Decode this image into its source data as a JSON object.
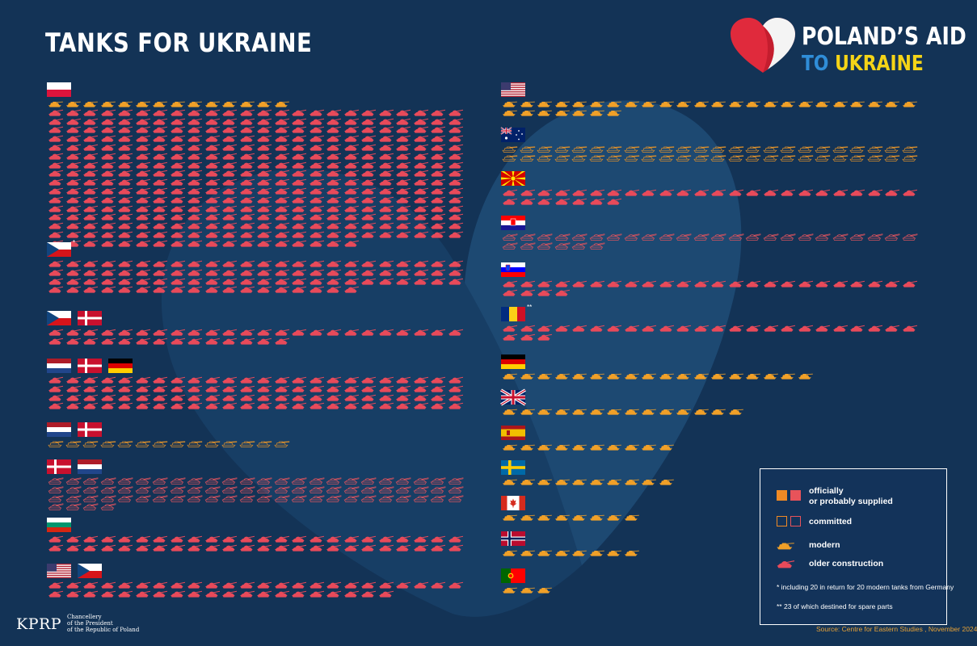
{
  "title": "TANKS FOR UKRAINE",
  "brand": {
    "line1": "POLAND’S AID",
    "line2a": "TO ",
    "line2b": "UKRAINE"
  },
  "colors": {
    "background": "#133356",
    "heart": "#1a4470",
    "older": "#e84a5a",
    "modern": "#f0a028",
    "committed_modern": "#d98e2c",
    "committed_older": "#d5525e"
  },
  "left_groups": [
    {
      "flags": [
        "poland"
      ],
      "note": "",
      "rows": [
        {
          "kind": "modern",
          "status": "supplied",
          "count": 14
        },
        {
          "kind": "older",
          "status": "supplied",
          "count": 24
        },
        {
          "kind": "older",
          "status": "supplied",
          "count": 24
        },
        {
          "kind": "older",
          "status": "supplied",
          "count": 24
        },
        {
          "kind": "older",
          "status": "supplied",
          "count": 24
        },
        {
          "kind": "older",
          "status": "supplied",
          "count": 24
        },
        {
          "kind": "older",
          "status": "supplied",
          "count": 24
        },
        {
          "kind": "older",
          "status": "supplied",
          "count": 24
        },
        {
          "kind": "older",
          "status": "supplied",
          "count": 24
        },
        {
          "kind": "older",
          "status": "supplied",
          "count": 24
        },
        {
          "kind": "older",
          "status": "supplied",
          "count": 24
        },
        {
          "kind": "older",
          "status": "supplied",
          "count": 24
        },
        {
          "kind": "older",
          "status": "supplied",
          "count": 24
        },
        {
          "kind": "older",
          "status": "supplied",
          "count": 24
        },
        {
          "kind": "older",
          "status": "supplied",
          "count": 24
        },
        {
          "kind": "older",
          "status": "supplied",
          "count": 24
        },
        {
          "kind": "older",
          "status": "supplied",
          "count": 18
        }
      ]
    },
    {
      "flags": [
        "czech"
      ],
      "note": "*",
      "rows": [
        {
          "kind": "older",
          "status": "supplied",
          "count": 24
        },
        {
          "kind": "older",
          "status": "supplied",
          "count": 24
        },
        {
          "kind": "older",
          "status": "supplied",
          "count": 24
        },
        {
          "kind": "older",
          "status": "supplied",
          "count": 18
        }
      ]
    },
    {
      "flags": [
        "czech",
        "denmark"
      ],
      "note": "",
      "rows": [
        {
          "kind": "older",
          "status": "supplied",
          "count": 24
        },
        {
          "kind": "older",
          "status": "supplied",
          "count": 14
        }
      ]
    },
    {
      "flags": [
        "netherlands",
        "denmark",
        "germany"
      ],
      "note": "",
      "rows": [
        {
          "kind": "older",
          "status": "supplied",
          "count": 24
        },
        {
          "kind": "older",
          "status": "supplied",
          "count": 24
        },
        {
          "kind": "older",
          "status": "supplied",
          "count": 24
        },
        {
          "kind": "older",
          "status": "supplied",
          "count": 24
        }
      ]
    },
    {
      "flags": [
        "netherlands",
        "denmark"
      ],
      "note": "",
      "rows": [
        {
          "kind": "modern",
          "status": "committed",
          "count": 14
        }
      ]
    },
    {
      "flags": [
        "denmark",
        "netherlands"
      ],
      "note": "",
      "rows": [
        {
          "kind": "older",
          "status": "committed",
          "count": 24
        },
        {
          "kind": "older",
          "status": "committed",
          "count": 24
        },
        {
          "kind": "older",
          "status": "committed",
          "count": 24
        },
        {
          "kind": "older",
          "status": "committed",
          "count": 4
        }
      ]
    },
    {
      "flags": [
        "bulgaria"
      ],
      "note": "",
      "rows": [
        {
          "kind": "older",
          "status": "supplied",
          "count": 24
        },
        {
          "kind": "older",
          "status": "supplied",
          "count": 24
        }
      ]
    },
    {
      "flags": [
        "usa",
        "czech"
      ],
      "note": "",
      "rows": [
        {
          "kind": "older",
          "status": "supplied",
          "count": 24
        },
        {
          "kind": "older",
          "status": "supplied",
          "count": 20
        }
      ]
    }
  ],
  "right_groups": [
    {
      "flags": [
        "usa"
      ],
      "note": "",
      "rows": [
        {
          "kind": "modern",
          "status": "supplied",
          "count": 24
        },
        {
          "kind": "modern",
          "status": "supplied",
          "count": 7
        }
      ]
    },
    {
      "flags": [
        "australia"
      ],
      "note": "",
      "rows": [
        {
          "kind": "modern",
          "status": "committed",
          "count": 24
        },
        {
          "kind": "modern",
          "status": "committed",
          "count": 24
        }
      ]
    },
    {
      "flags": [
        "north_macedonia"
      ],
      "note": "",
      "rows": [
        {
          "kind": "older",
          "status": "supplied",
          "count": 24
        },
        {
          "kind": "older",
          "status": "supplied",
          "count": 7
        }
      ]
    },
    {
      "flags": [
        "croatia"
      ],
      "note": "",
      "rows": [
        {
          "kind": "older",
          "status": "committed",
          "count": 24
        },
        {
          "kind": "older",
          "status": "committed",
          "count": 6
        }
      ]
    },
    {
      "flags": [
        "slovenia"
      ],
      "note": "",
      "rows": [
        {
          "kind": "older",
          "status": "supplied",
          "count": 24
        },
        {
          "kind": "older",
          "status": "supplied",
          "count": 4
        }
      ]
    },
    {
      "flags": [
        "romania"
      ],
      "note": "**",
      "rows": [
        {
          "kind": "older",
          "status": "supplied",
          "count": 24
        },
        {
          "kind": "older",
          "status": "supplied",
          "count": 3
        }
      ]
    },
    {
      "flags": [
        "germany"
      ],
      "note": "",
      "rows": [
        {
          "kind": "modern",
          "status": "supplied",
          "count": 18
        }
      ]
    },
    {
      "flags": [
        "uk"
      ],
      "note": "",
      "rows": [
        {
          "kind": "modern",
          "status": "supplied",
          "count": 14
        }
      ]
    },
    {
      "flags": [
        "spain"
      ],
      "note": "",
      "rows": [
        {
          "kind": "modern",
          "status": "supplied",
          "count": 10
        }
      ]
    },
    {
      "flags": [
        "sweden"
      ],
      "note": "",
      "rows": [
        {
          "kind": "modern",
          "status": "supplied",
          "count": 10
        }
      ]
    },
    {
      "flags": [
        "canada"
      ],
      "note": "",
      "rows": [
        {
          "kind": "modern",
          "status": "supplied",
          "count": 8
        }
      ]
    },
    {
      "flags": [
        "norway"
      ],
      "note": "",
      "rows": [
        {
          "kind": "modern",
          "status": "supplied",
          "count": 8
        }
      ]
    },
    {
      "flags": [
        "portugal"
      ],
      "note": "",
      "rows": [
        {
          "kind": "modern",
          "status": "supplied",
          "count": 3
        }
      ]
    }
  ],
  "legend": {
    "supplied_line1": "officially",
    "supplied_line2": "or probably supplied",
    "committed": "committed",
    "modern": "modern",
    "older": "older construction",
    "footnote1": "*   including 20 in return for 20 modern tanks from Germany",
    "footnote2": "** 23 of which destined for spare parts"
  },
  "source": "Source: Centre for Eastern Studies , November 2024",
  "kprp": {
    "logo": "KPRP",
    "line1": "Chancellery",
    "line2": "of the President",
    "line3": "of the Republic of Poland"
  }
}
